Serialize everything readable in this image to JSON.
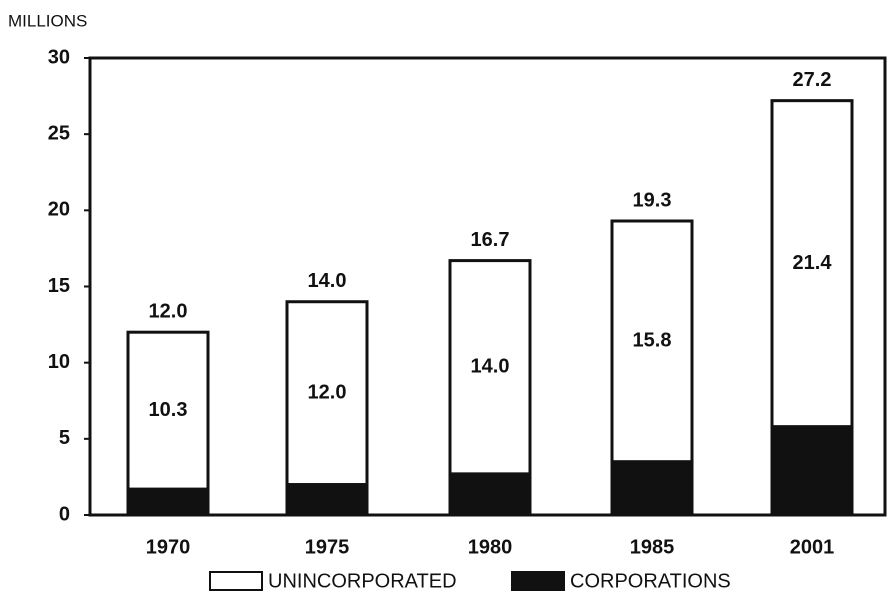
{
  "chart_data": {
    "type": "stacked_bar",
    "y_label": "MILLIONS",
    "categories": [
      "1970",
      "1975",
      "1980",
      "1985",
      "2001"
    ],
    "series": [
      {
        "name": "CORPORATIONS",
        "color": "#111111",
        "values": [
          1.7,
          2.0,
          2.7,
          3.5,
          5.8
        ],
        "value_labels": [
          "1.7",
          "2.0",
          "2.7",
          "3.5",
          "5.8"
        ]
      },
      {
        "name": "UNINCORPORATED",
        "color": "#ffffff",
        "values": [
          10.3,
          12.0,
          14.0,
          15.8,
          21.4
        ],
        "value_labels": [
          "10.3",
          "12.0",
          "14.0",
          "15.8",
          "21.4"
        ]
      }
    ],
    "totals": {
      "values": [
        12.0,
        14.0,
        16.7,
        19.3,
        27.2
      ],
      "value_labels": [
        "12.0",
        "14.0",
        "16.7",
        "19.3",
        "27.2"
      ]
    },
    "ylim": [
      0,
      30
    ],
    "yticks": [
      0,
      5,
      10,
      15,
      20,
      25,
      30
    ],
    "legend": "bottom"
  }
}
